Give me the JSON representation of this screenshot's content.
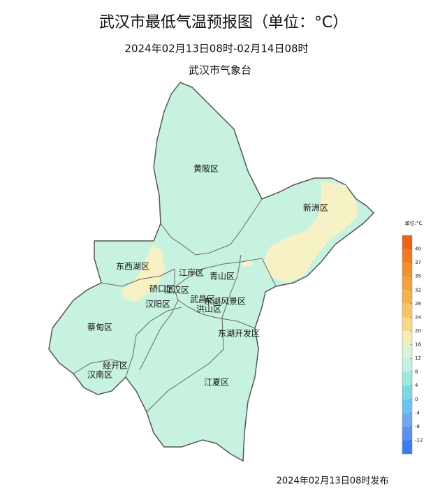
{
  "title": "武汉市最低气温预报图（单位：°C）",
  "subtitle": "2024年02月13日08时-02月14日08时",
  "issuer": "武汉市气象台",
  "districts": [
    "黄陂区",
    "新洲区",
    "东西湖区",
    "江岸区",
    "青山区",
    "硚口区",
    "江汉区",
    "汉阳区",
    "武昌区",
    "洪山区",
    "东湖风景区",
    "蔡甸区",
    "东湖开发区",
    "经开区",
    "汉南区",
    "江夏区"
  ],
  "legend": {
    "title": "单位:°C",
    "ticks": [
      40,
      37,
      35,
      32,
      28,
      24,
      20,
      16,
      12,
      8,
      4,
      0,
      -4,
      -8,
      -12
    ],
    "colors": [
      "#e8641a",
      "#ee7a22",
      "#f2902e",
      "#f4a03c",
      "#f6b04e",
      "#f8c466",
      "#f8d888",
      "#f8ecb4",
      "#d8f4d8",
      "#c2f0e2",
      "#9ee8dc",
      "#7ed8e4",
      "#6cc4ec",
      "#70a8ee",
      "#5e90ee",
      "#3c7ef0"
    ]
  },
  "footer": "2024年02月13日08时发布"
}
